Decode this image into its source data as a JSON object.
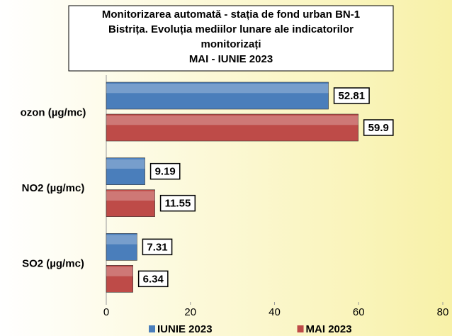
{
  "chart_data": {
    "type": "bar",
    "orientation": "horizontal",
    "title": [
      "Monitorizarea automată  - stația de fond urban BN-1",
      "Bistrița. Evoluția mediilor lunare ale indicatorilor",
      "monitorizați",
      "MAI - IUNIE  2023"
    ],
    "categories": [
      "ozon (µg/mc)",
      "NO2 (µg/mc)",
      "SO2 (µg/mc)"
    ],
    "series": [
      {
        "name": "IUNIE 2023",
        "color": "#4a7ebb",
        "values": [
          52.81,
          9.19,
          7.31
        ]
      },
      {
        "name": "MAI 2023",
        "color": "#be4b48",
        "values": [
          59.9,
          11.55,
          6.34
        ]
      }
    ],
    "xlim": [
      0,
      80
    ],
    "xticks": [
      0,
      20,
      40,
      60,
      80
    ],
    "legend": "bottom"
  }
}
